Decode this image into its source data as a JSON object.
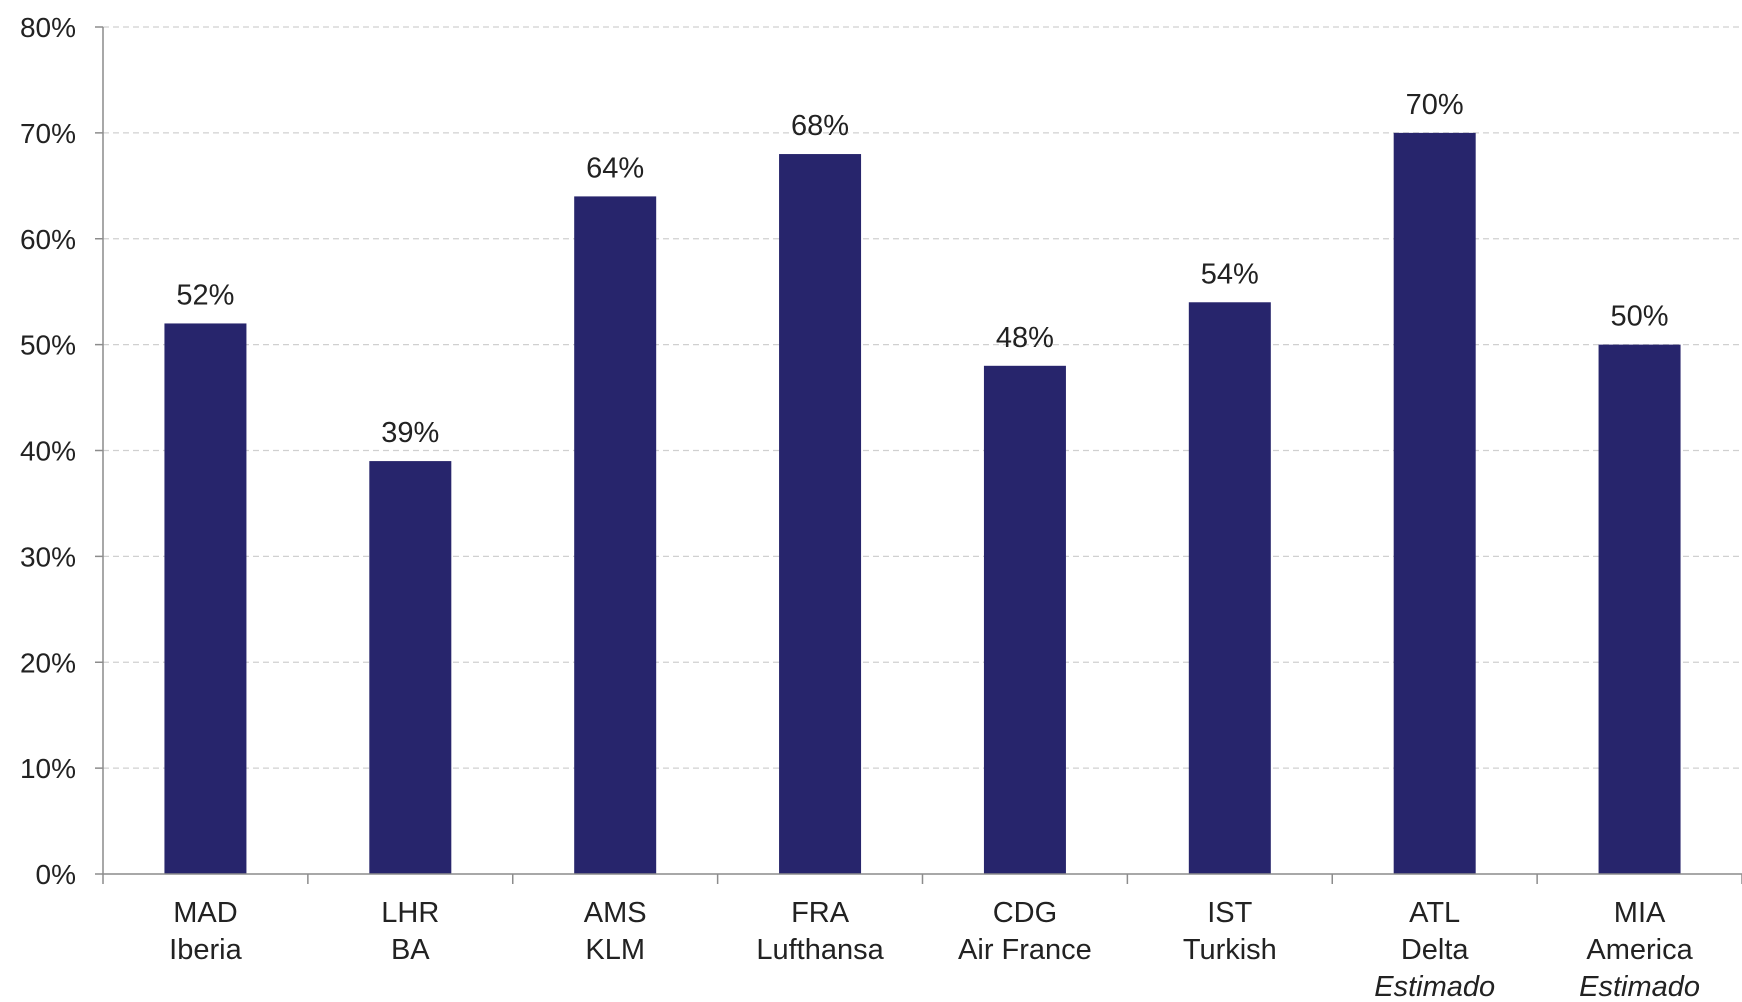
{
  "colors": {
    "bar": "#27256c",
    "axis": "#8c8c8c",
    "grid": "#d0d0d0",
    "text": "#222222"
  },
  "chart_data": {
    "type": "bar",
    "categories": [
      [
        "MAD",
        "Iberia"
      ],
      [
        "LHR",
        "BA"
      ],
      [
        "AMS",
        "KLM"
      ],
      [
        "FRA",
        "Lufthansa"
      ],
      [
        "CDG",
        "Air France"
      ],
      [
        "IST",
        "Turkish"
      ],
      [
        "ATL",
        "Delta",
        "Estimado"
      ],
      [
        "MIA",
        "America",
        "Estimado"
      ]
    ],
    "values": [
      52,
      39,
      64,
      68,
      48,
      54,
      70,
      50
    ],
    "data_labels": [
      "52%",
      "39%",
      "64%",
      "68%",
      "48%",
      "54%",
      "70%",
      "50%"
    ],
    "title": "",
    "xlabel": "",
    "ylabel": "",
    "ylim": [
      0,
      80
    ],
    "yticks": [
      0,
      10,
      20,
      30,
      40,
      50,
      60,
      70,
      80
    ],
    "ytick_labels": [
      "0%",
      "10%",
      "20%",
      "30%",
      "40%",
      "50%",
      "60%",
      "70%",
      "80%"
    ],
    "grid": true,
    "legend": "none"
  }
}
